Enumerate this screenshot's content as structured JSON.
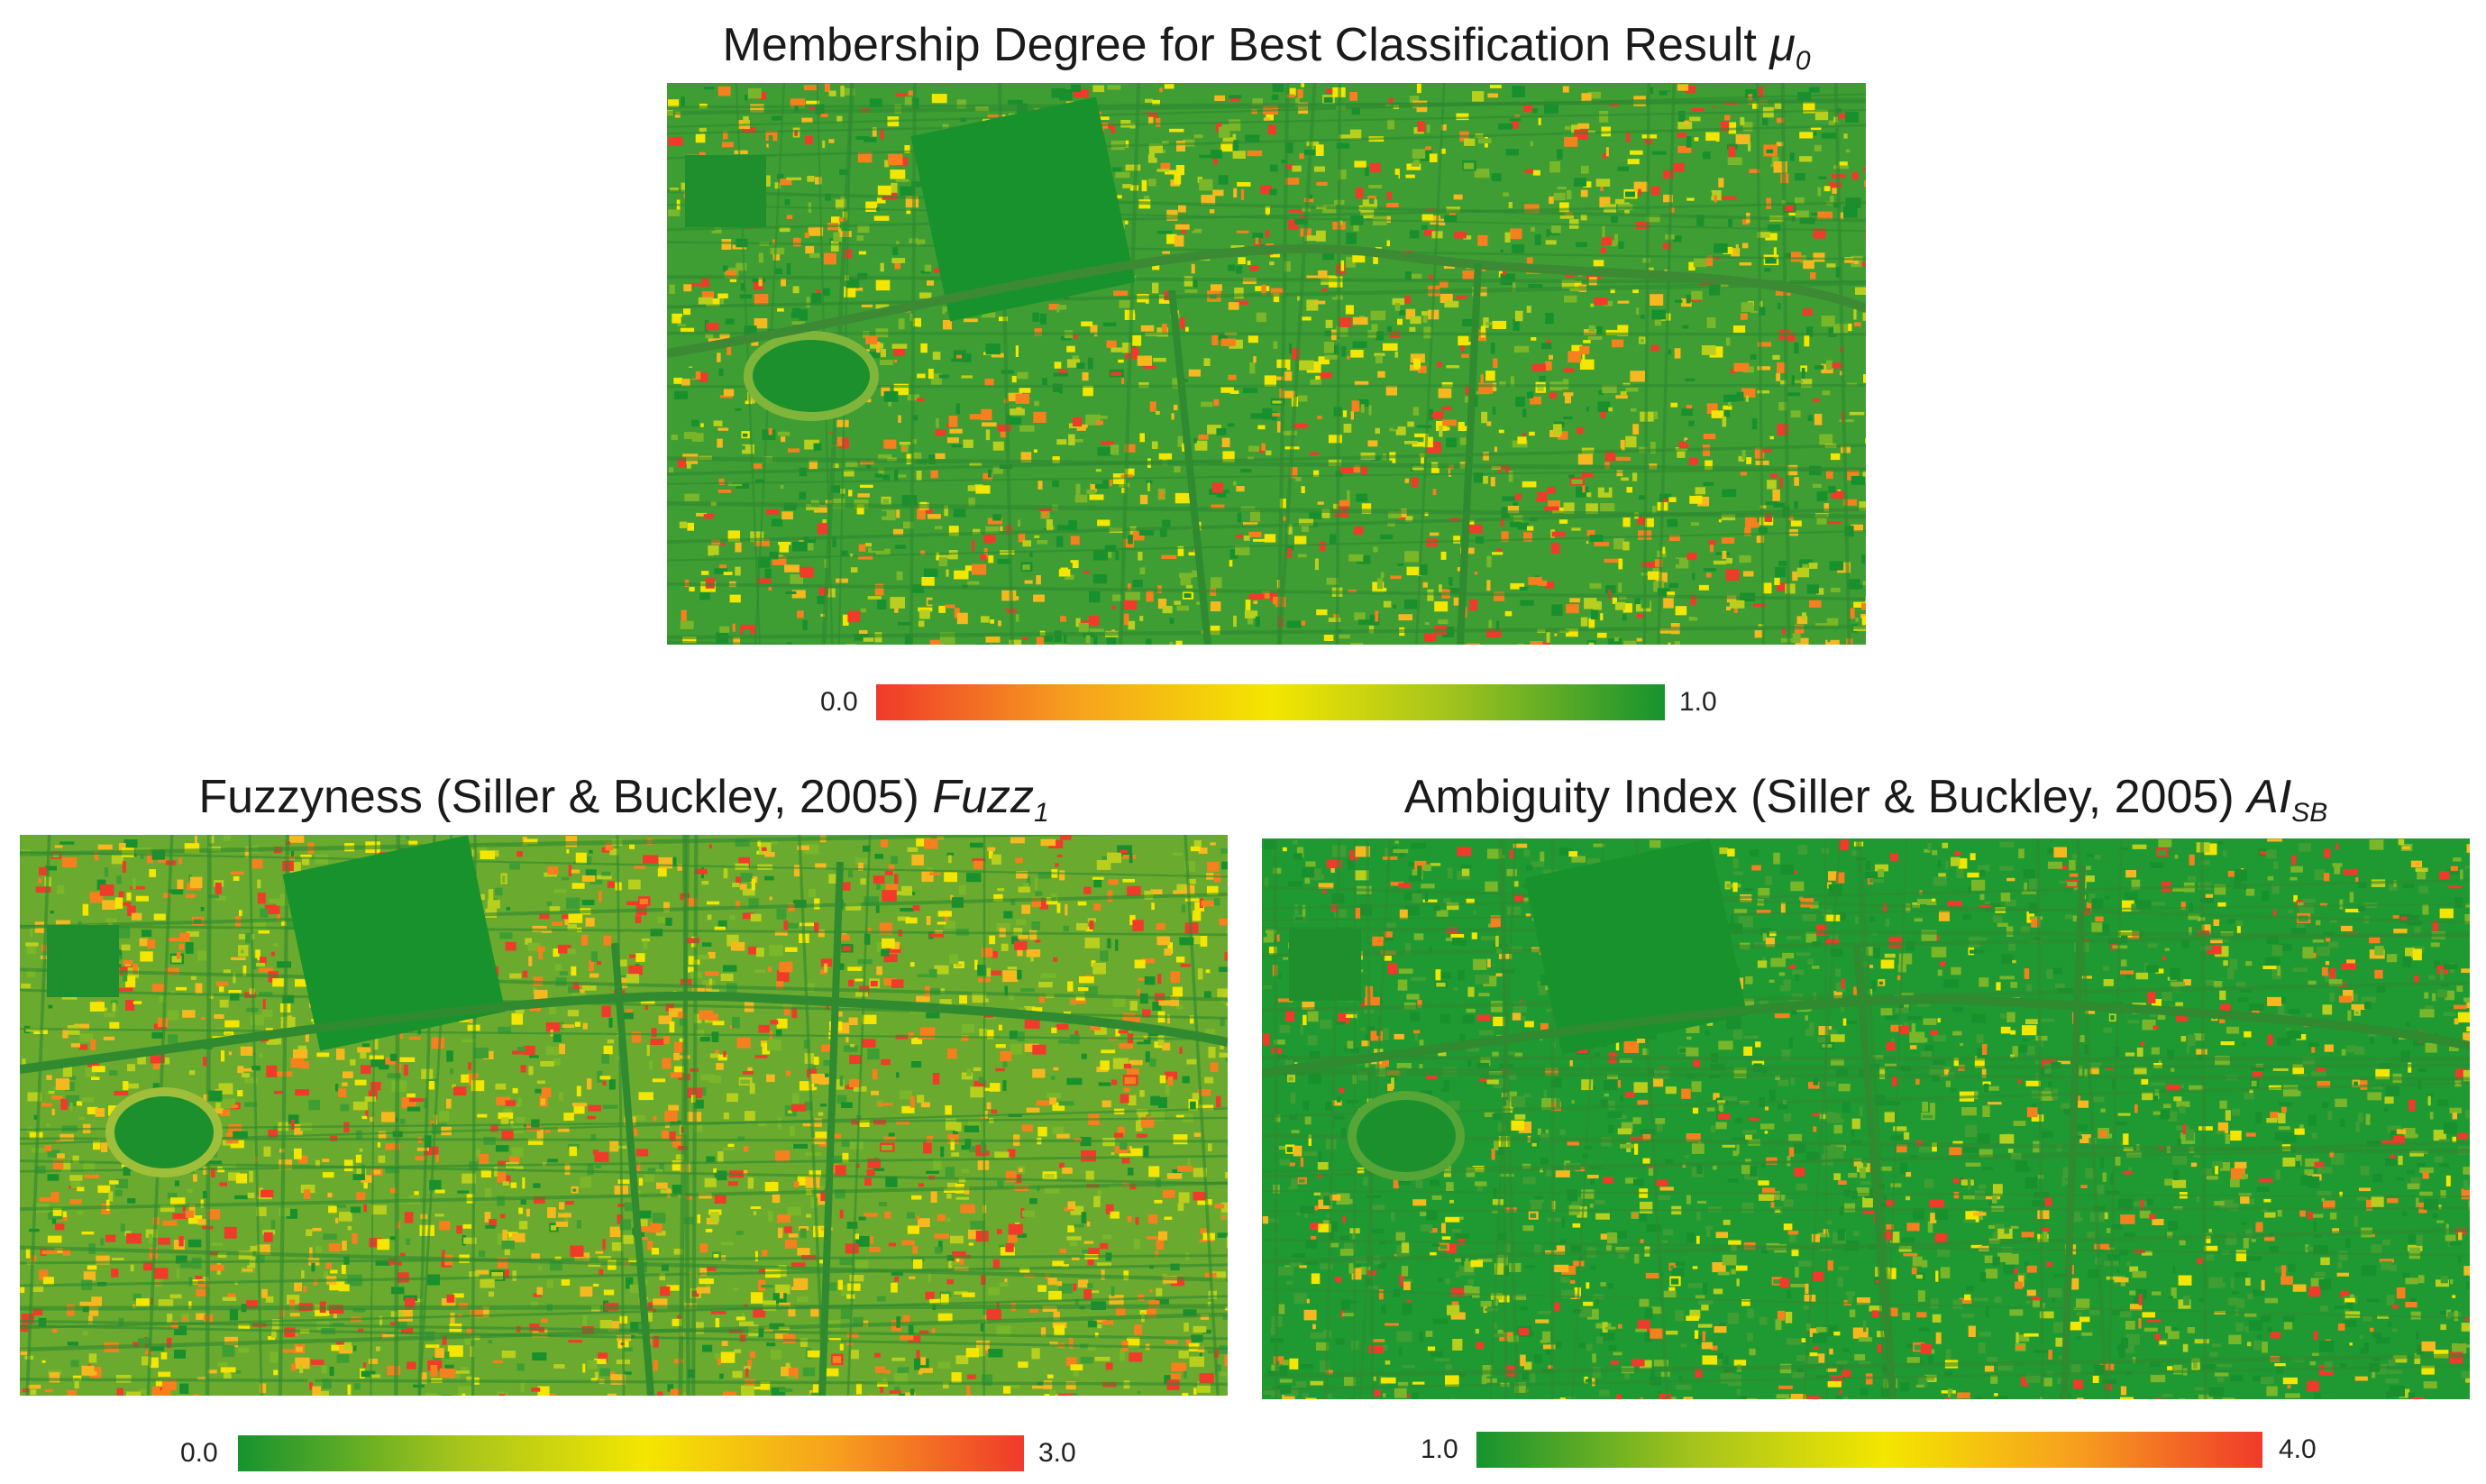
{
  "figure": {
    "panels": [
      {
        "id": "mu0",
        "title_text": "Membership Degree for Best Classification Result ",
        "title_symbol": "μ",
        "title_subscript": "0",
        "legend": {
          "min_label": "0.0",
          "max_label": "1.0",
          "low_color": "#f03a2a",
          "mid_color": "#f4e600",
          "high_color": "#16932f",
          "gradient": "low-to-high"
        }
      },
      {
        "id": "fuzz1",
        "title_text": "Fuzzyness (Siller & Buckley, 2005) ",
        "title_symbol": "Fuzz",
        "title_subscript": "1",
        "legend": {
          "min_label": "0.0",
          "max_label": "3.0",
          "low_color": "#16932f",
          "mid_color": "#f4e600",
          "high_color": "#f03a2a",
          "gradient": "high-is-red"
        }
      },
      {
        "id": "aisb",
        "title_text": "Ambiguity Index (Siller & Buckley, 2005) ",
        "title_symbol": "AI",
        "title_subscript": "SB",
        "legend": {
          "min_label": "1.0",
          "max_label": "4.0",
          "low_color": "#16932f",
          "mid_color": "#f4e600",
          "high_color": "#f03a2a",
          "gradient": "high-is-red"
        }
      }
    ]
  }
}
